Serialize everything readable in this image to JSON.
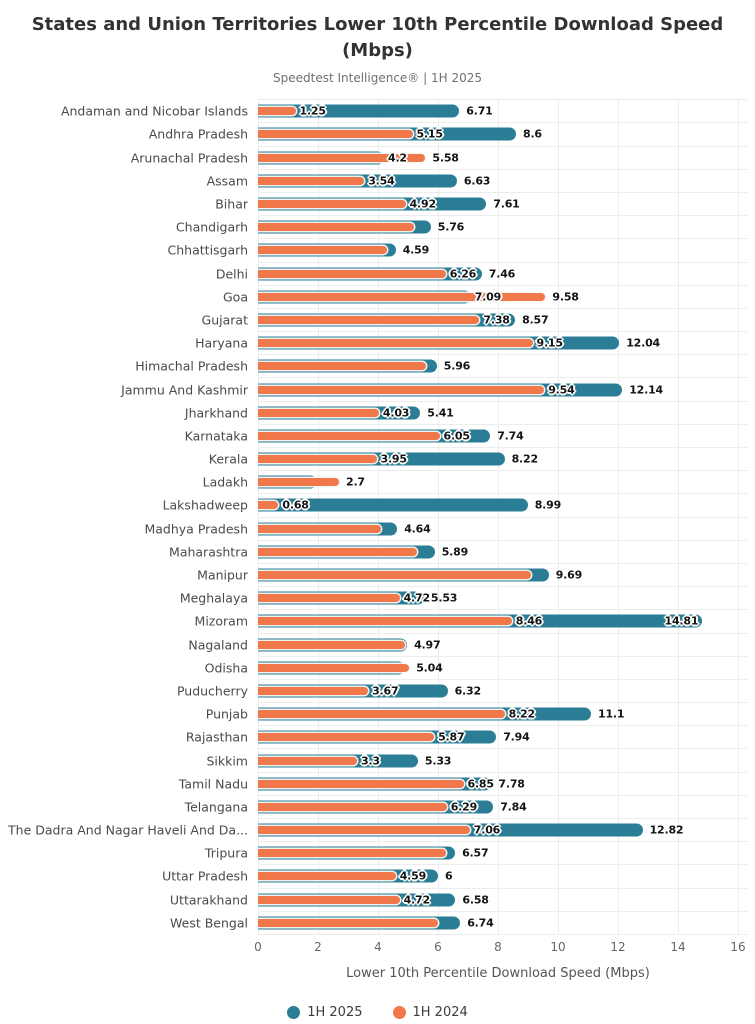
{
  "chart_data": {
    "type": "bar",
    "orientation": "horizontal",
    "title": "States and Union Territories Lower 10th Percentile Download Speed (Mbps)",
    "subtitle": "Speedtest Intelligence® | 1H 2025",
    "xlabel": "Lower 10th Percentile Download Speed (Mbps)",
    "xlim": [
      0,
      16
    ],
    "xticks": [
      0,
      2,
      4,
      6,
      8,
      10,
      12,
      14,
      16
    ],
    "grid": true,
    "legend_position": "bottom",
    "categories": [
      "Andaman and Nicobar Islands",
      "Andhra Pradesh",
      "Arunachal Pradesh",
      "Assam",
      "Bihar",
      "Chandigarh",
      "Chhattisgarh",
      "Delhi",
      "Goa",
      "Gujarat",
      "Haryana",
      "Himachal Pradesh",
      "Jammu And Kashmir",
      "Jharkhand",
      "Karnataka",
      "Kerala",
      "Ladakh",
      "Lakshadweep",
      "Madhya Pradesh",
      "Maharashtra",
      "Manipur",
      "Meghalaya",
      "Mizoram",
      "Nagaland",
      "Odisha",
      "Puducherry",
      "Punjab",
      "Rajasthan",
      "Sikkim",
      "Tamil Nadu",
      "Telangana",
      "The Dadra And Nagar Haveli And Da...",
      "Tripura",
      "Uttar Pradesh",
      "Uttarakhand",
      "West Bengal"
    ],
    "series": [
      {
        "name": "1H 2025",
        "color": "#2a7d94",
        "values": [
          6.71,
          8.6,
          4.2,
          6.63,
          7.61,
          5.76,
          4.59,
          7.46,
          7.09,
          8.57,
          12.04,
          5.96,
          12.14,
          5.41,
          7.74,
          8.22,
          1.95,
          8.99,
          4.64,
          5.89,
          9.69,
          5.53,
          14.81,
          4.97,
          4.9,
          6.32,
          11.1,
          7.94,
          5.33,
          7.78,
          7.84,
          12.82,
          6.57,
          6,
          6.58,
          6.74
        ],
        "labels": [
          "6.71",
          "8.6",
          "4.2",
          "6.63",
          "7.61",
          "5.76",
          "4.59",
          "7.46",
          "7.09",
          "8.57",
          "12.04",
          "5.96",
          "12.14",
          "5.41",
          "7.74",
          "8.22",
          "",
          "8.99",
          "4.64",
          "5.89",
          "9.69",
          "5.53",
          "14.81",
          "4.97",
          "",
          "6.32",
          "11.1",
          "7.94",
          "5.33",
          "7.78",
          "7.84",
          "12.82",
          "6.57",
          "6",
          "6.58",
          "6.74"
        ],
        "inside_label_indices": [
          22
        ]
      },
      {
        "name": "1H 2024",
        "color": "#f0784b",
        "values": [
          1.25,
          5.15,
          5.58,
          3.54,
          4.92,
          5.2,
          4.3,
          6.26,
          9.58,
          7.38,
          9.15,
          5.6,
          9.54,
          4.03,
          6.05,
          3.95,
          2.7,
          0.68,
          4.1,
          5.3,
          9.1,
          4.72,
          8.46,
          4.9,
          5.04,
          3.67,
          8.22,
          5.87,
          3.3,
          6.85,
          6.29,
          7.06,
          6.25,
          4.59,
          4.72,
          6.0
        ],
        "labels": [
          "1.25",
          "5.15",
          "5.58",
          "3.54",
          "4.92",
          "",
          "",
          "6.26",
          "9.58",
          "7.38",
          "9.15",
          "",
          "9.54",
          "4.03",
          "6.05",
          "3.95",
          "2.7",
          "0.68",
          "",
          "",
          "",
          "4.72",
          "8.46",
          "",
          "5.04",
          "3.67",
          "8.22",
          "5.87",
          "3.3",
          "6.85",
          "6.29",
          "7.06",
          "",
          "4.59",
          "4.72",
          ""
        ]
      }
    ],
    "legend": [
      {
        "label": "1H 2025",
        "color": "#2a7d94"
      },
      {
        "label": "1H 2024",
        "color": "#f0784b"
      }
    ]
  }
}
